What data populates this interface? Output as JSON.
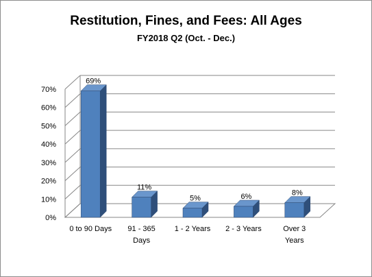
{
  "chart_data": {
    "type": "bar",
    "title": "Restitution, Fines, and Fees: All Ages",
    "subtitle": "FY2018 Q2 (Oct. - Dec.)",
    "categories": [
      [
        "0 to 90 Days"
      ],
      [
        "91 - 365",
        "Days"
      ],
      [
        "1 - 2 Years"
      ],
      [
        "2 - 3 Years"
      ],
      [
        "Over 3",
        "Years"
      ]
    ],
    "values": [
      69,
      11,
      5,
      6,
      8
    ],
    "data_labels": [
      "69%",
      "11%",
      "5%",
      "6%",
      "8%"
    ],
    "y_ticks": [
      "0%",
      "10%",
      "20%",
      "30%",
      "40%",
      "50%",
      "60%",
      "70%"
    ],
    "ylim": [
      0,
      70
    ],
    "grid": true,
    "legend": "none",
    "bar_color": "#4f81bd",
    "bar_side_color": "#2f4f7a",
    "bar_top_color": "#6a96cc"
  }
}
